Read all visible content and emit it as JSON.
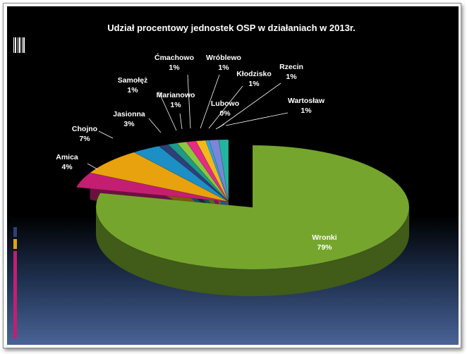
{
  "chart_data": {
    "type": "pie",
    "title": "Udział procentowy jednostek OSP w działaniach w 2013r.",
    "slices": [
      {
        "name": "Wronki",
        "value": 79,
        "label": "79%",
        "color": "#76a52d"
      },
      {
        "name": "Amica",
        "value": 4,
        "label": "4%",
        "color": "#c41e73"
      },
      {
        "name": "Chojno",
        "value": 7,
        "label": "7%",
        "color": "#e8a20d"
      },
      {
        "name": "Jasionna",
        "value": 3,
        "label": "3%",
        "color": "#1c8fc4"
      },
      {
        "name": "Samołęż",
        "value": 1,
        "label": "1%",
        "color": "#2e3f7a"
      },
      {
        "name": "Marianowo",
        "value": 1,
        "label": "1%",
        "color": "#1d9a88"
      },
      {
        "name": "Ćmachowo",
        "value": 1,
        "label": "1%",
        "color": "#8cc83e"
      },
      {
        "name": "Wróblewo",
        "value": 1,
        "label": "1%",
        "color": "#e62a86"
      },
      {
        "name": "Kłodzisko",
        "value": 1,
        "label": "1%",
        "color": "#f2b81c"
      },
      {
        "name": "Lubowo",
        "value": 0,
        "label": "0%",
        "color": "#2aa8e0"
      },
      {
        "name": "Rzecin",
        "value": 1,
        "label": "1%",
        "color": "#7a86d8"
      },
      {
        "name": "Wartosław",
        "value": 1,
        "label": "1%",
        "color": "#22b5a0"
      }
    ],
    "legend": "none",
    "data_labels": "outside with leader lines"
  },
  "colors": {
    "background_top": "#000000",
    "background_bottom": "#4a6396",
    "text": "#ffffff",
    "side_stripes": [
      "#2e3f7a",
      "#e8a20d",
      "#c41e73"
    ]
  }
}
